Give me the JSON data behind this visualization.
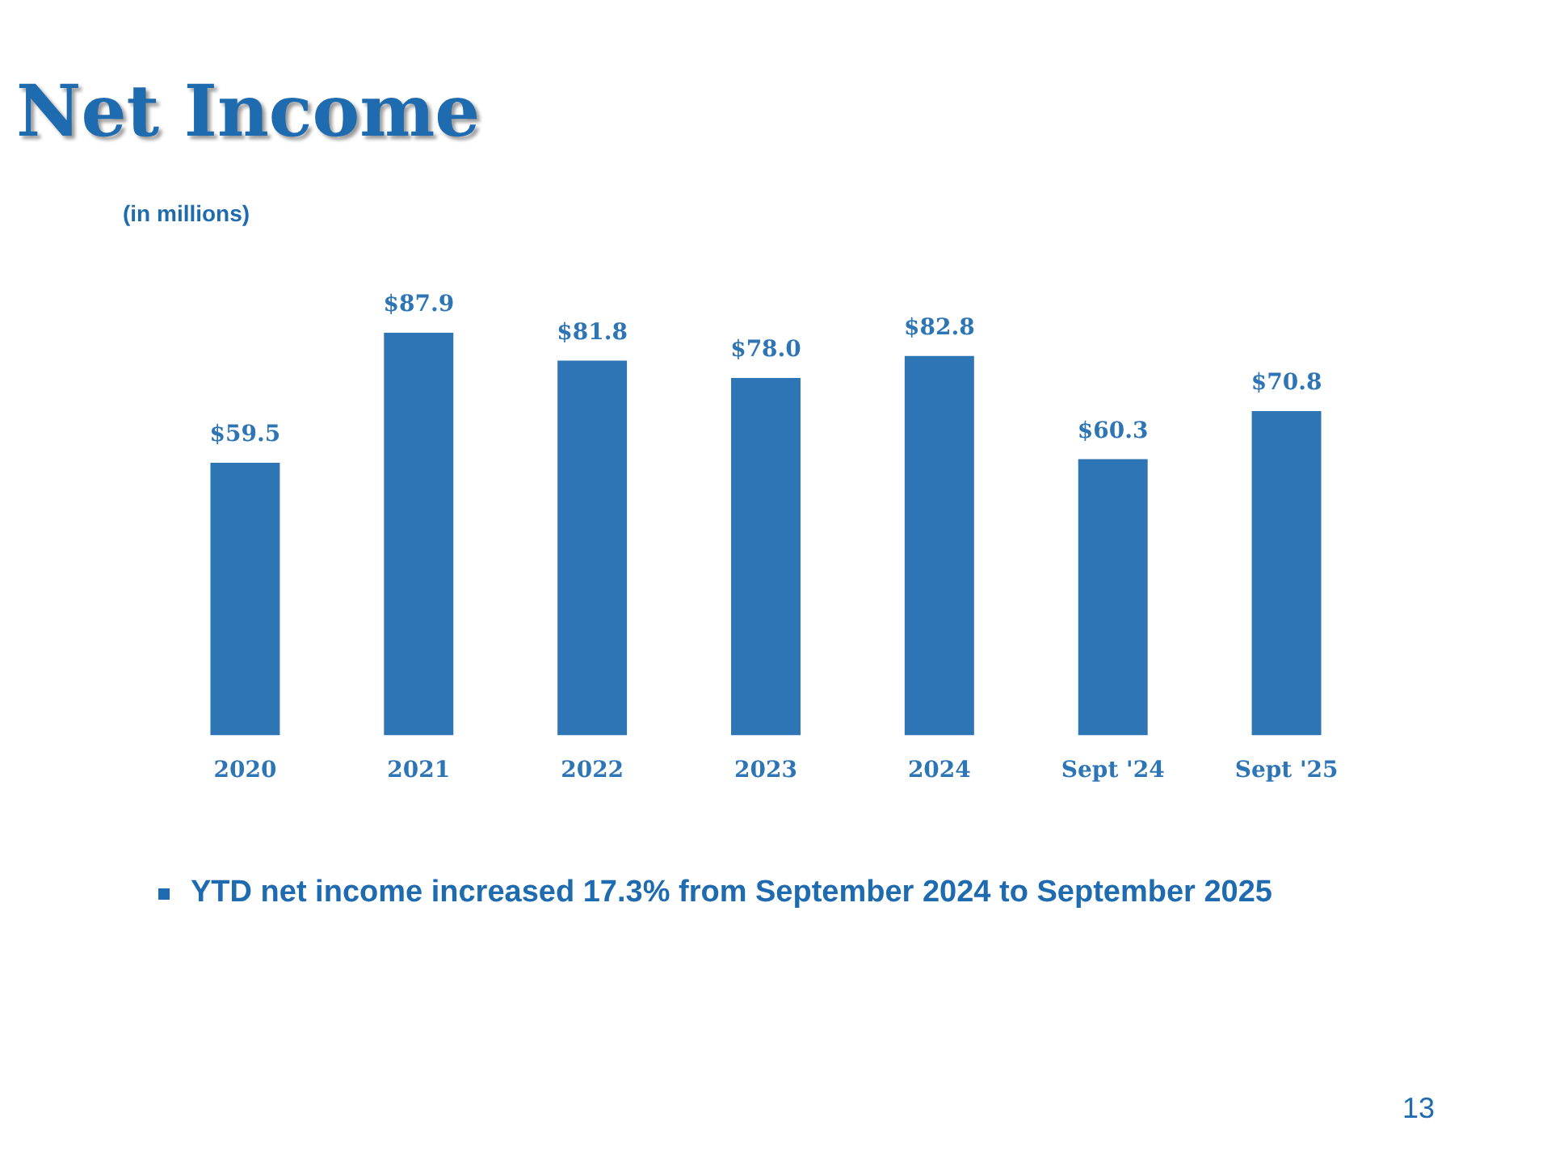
{
  "chart_data": {
    "type": "bar",
    "title": "Net Income",
    "subtitle": "(in millions)",
    "categories": [
      "2020",
      "2021",
      "2022",
      "2023",
      "2024",
      "Sept '24",
      "Sept '25"
    ],
    "values": [
      59.5,
      87.9,
      81.8,
      78.0,
      82.8,
      60.3,
      70.8
    ],
    "value_labels": [
      "$59.5",
      "$87.9",
      "$81.8",
      "$78.0",
      "$82.8",
      "$60.3",
      "$70.8"
    ],
    "color": "#2e75b6",
    "relative": false,
    "grid": false,
    "legend": false,
    "annotations": [
      "YTD net income increased 17.3% from September 2024 to September 2025",
      "13"
    ]
  }
}
